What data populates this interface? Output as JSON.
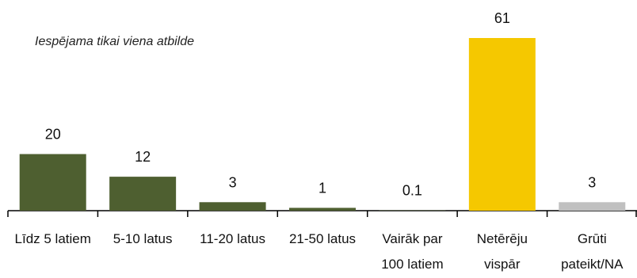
{
  "chart_data": {
    "type": "bar",
    "annotation": "Iespējama tikai viena atbilde",
    "categories": [
      [
        "Līdz 5 latiem"
      ],
      [
        "5-10 latus"
      ],
      [
        "11-20 latus"
      ],
      [
        "21-50 latus"
      ],
      [
        "Vairāk par",
        "100 latiem"
      ],
      [
        "Netērēju",
        "vispār"
      ],
      [
        "Grūti",
        "pateikt/NA"
      ]
    ],
    "values": [
      20,
      12,
      3,
      1,
      0.1,
      61,
      3
    ],
    "value_labels": [
      "20",
      "12",
      "3",
      "1",
      "0.1",
      "61",
      "3"
    ],
    "colors": [
      "#4e5f30",
      "#4e5f30",
      "#4e5f30",
      "#4e5f30",
      "#4e5f30",
      "#f5c800",
      "#c0c0c0"
    ],
    "ylim": [
      0,
      61
    ],
    "grid": false,
    "legend": false
  }
}
